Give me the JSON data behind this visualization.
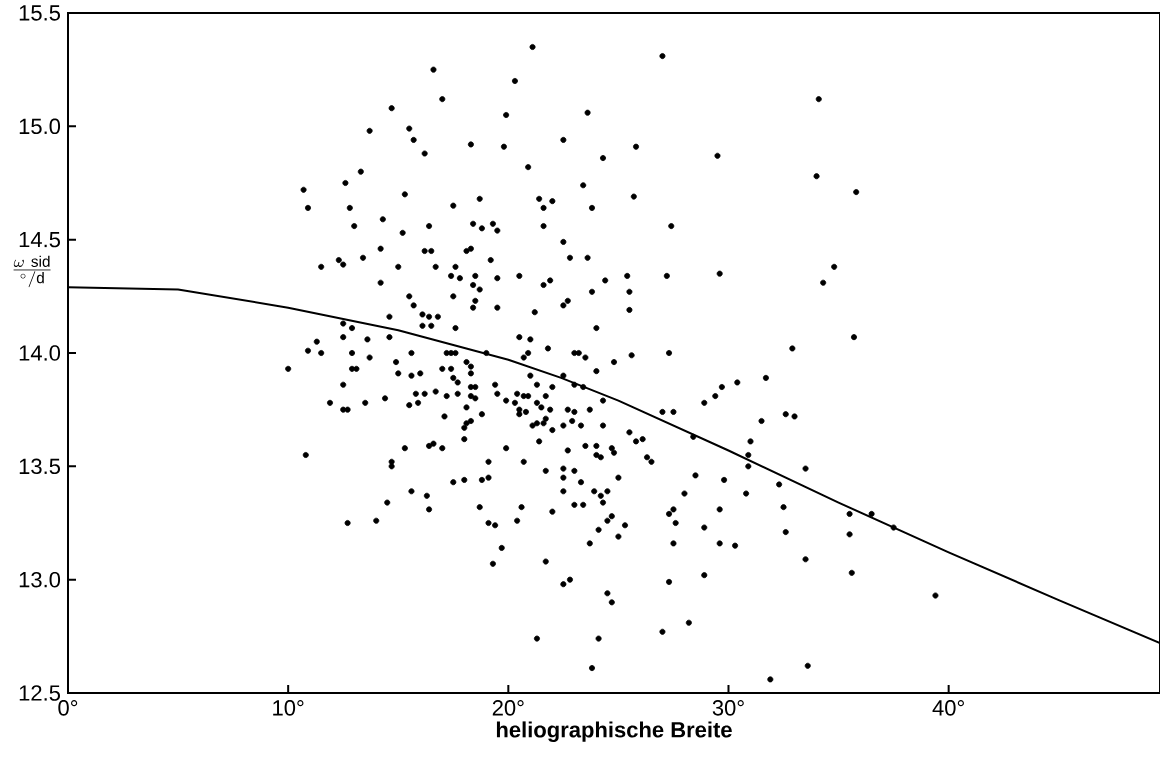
{
  "chart_data": {
    "type": "scatter",
    "xlabel": "heliographische Breite",
    "ylabel": "\\frac{\\omega\\ \\mathrm{sid}}{^{\\circ}/\\mathrm{d}}",
    "xlim": [
      0,
      49.6
    ],
    "ylim": [
      12.5,
      15.5
    ],
    "xticks": [
      {
        "value": 0,
        "label": "0°"
      },
      {
        "value": 10,
        "label": "10°"
      },
      {
        "value": 20,
        "label": "20°"
      },
      {
        "value": 30,
        "label": "30°"
      },
      {
        "value": 40,
        "label": "40°"
      }
    ],
    "yticks": [
      {
        "value": 12.5,
        "label": "12.5"
      },
      {
        "value": 13,
        "label": "13.0"
      },
      {
        "value": 13.5,
        "label": "13.5"
      },
      {
        "value": 14,
        "label": "14.0"
      },
      {
        "value": 14.5,
        "label": "14.5"
      },
      {
        "value": 15,
        "label": "15.0"
      },
      {
        "value": 15.5,
        "label": "15.5"
      }
    ],
    "series": [
      {
        "color": "#000000",
        "marker": "circle",
        "x": [
          21.1,
          16.6,
          20.3,
          17.0,
          14.7,
          19.9,
          13.7,
          15.5,
          15.7,
          18.3,
          19.8,
          22.5,
          16.2,
          20.9,
          13.3,
          12.6,
          10.7,
          10.9,
          12.8,
          15.3,
          17.5,
          18.7,
          21.4,
          22.0,
          21.6,
          13.0,
          14.3,
          16.4,
          18.4,
          18.8,
          19.3,
          19.5,
          21.6,
          22.5,
          15.2,
          14.2,
          16.2,
          16.5,
          18.1,
          18.3,
          19.2,
          22.8,
          12.3,
          12.5,
          11.5,
          13.4,
          15.0,
          16.7,
          17.6,
          17.4,
          17.8,
          18.5,
          19.5,
          20.5,
          14.2,
          18.4,
          18.7,
          21.6,
          21.9,
          17.5,
          15.5,
          18.5,
          15.7,
          18.4,
          19.5,
          22.7,
          22.5,
          21.2,
          14.6,
          16.1,
          16.4,
          16.8,
          16.1,
          16.5,
          17.6,
          12.5,
          12.9,
          12.5,
          11.3,
          13.6,
          14.6,
          20.5,
          21.0,
          10.9,
          11.5,
          12.9,
          13.7,
          15.6,
          17.2,
          17.4,
          17.6,
          19.0,
          21.8,
          20.9,
          20.7,
          14.9,
          18.1,
          18.3,
          10.0,
          12.9,
          13.1,
          15.0,
          15.6,
          16.0,
          17.0,
          17.4,
          17.5,
          18.3,
          21.0,
          22.5,
          27.0,
          34.1,
          23.6,
          25.8,
          24.3,
          29.5,
          34.0,
          35.8,
          23.4,
          25.7,
          23.8,
          27.4,
          23.6,
          25.4,
          27.2,
          29.6,
          24.4,
          34.8,
          34.3,
          23.8,
          25.5,
          25.5,
          24.0,
          32.9,
          35.7,
          23.0,
          23.2,
          23.5,
          24.8,
          25.6,
          27.3,
          24.0,
          31.7,
          12.5,
          11.9,
          12.5,
          12.7,
          13.5,
          14.4,
          15.5,
          15.9,
          15.8,
          16.2,
          16.7,
          17.2,
          17.7,
          17.7,
          17.1,
          18.1,
          18.3,
          18.1,
          18.0,
          18.0,
          18.3,
          18.5,
          18.3,
          18.5,
          18.8,
          19.4,
          19.5,
          19.9,
          20.3,
          20.4,
          20.5,
          20.5,
          20.8,
          20.9,
          20.7,
          21.3,
          21.7,
          21.3,
          21.5,
          21.9,
          21.7,
          21.1,
          21.3,
          21.6,
          22.0,
          22.5,
          22.7,
          22.0,
          10.8,
          15.3,
          16.4,
          16.6,
          17.0,
          19.9,
          21.4,
          22.7,
          14.7,
          14.7,
          19.1,
          20.7,
          21.7,
          22.5,
          22.5,
          22.5,
          17.5,
          18.0,
          18.8,
          19.1,
          14.5,
          15.6,
          16.3,
          16.4,
          18.7,
          20.6,
          22.0,
          12.7,
          14.0,
          19.1,
          19.4,
          20.4,
          19.7,
          19.3,
          21.7,
          22.5,
          22.8,
          21.3,
          23.0,
          23.4,
          24.3,
          23.0,
          23.7,
          22.9,
          23.3,
          24.3,
          23.5,
          24.0,
          24.0,
          24.2,
          24.7,
          24.8,
          25.5,
          25.8,
          26.1,
          26.3,
          26.5,
          23.0,
          23.3,
          25.0,
          23.9,
          24.2,
          24.5,
          24.3,
          23.0,
          23.4,
          24.7,
          24.5,
          25.3,
          24.1,
          25.0,
          23.7,
          24.5,
          24.7,
          24.1,
          23.8,
          27.0,
          27.5,
          28.9,
          29.4,
          29.7,
          30.4,
          28.4,
          31.5,
          32.6,
          33.0,
          31.0,
          30.9,
          30.9,
          28.5,
          29.8,
          28.0,
          30.8,
          32.3,
          33.5,
          32.5,
          29.6,
          27.3,
          27.5,
          27.6,
          28.9,
          32.6,
          27.5,
          29.6,
          30.3,
          35.5,
          36.5,
          37.5,
          35.5,
          33.5,
          35.6,
          28.9,
          27.3,
          39.4,
          28.2,
          27.0,
          33.6,
          31.9
        ],
        "values": [
          15.35,
          15.25,
          15.2,
          15.12,
          15.08,
          15.05,
          14.98,
          14.99,
          14.94,
          14.92,
          14.91,
          14.94,
          14.88,
          14.82,
          14.8,
          14.75,
          14.72,
          14.64,
          14.64,
          14.7,
          14.65,
          14.68,
          14.68,
          14.67,
          14.64,
          14.56,
          14.59,
          14.56,
          14.57,
          14.55,
          14.57,
          14.54,
          14.56,
          14.49,
          14.53,
          14.46,
          14.45,
          14.45,
          14.45,
          14.46,
          14.41,
          14.42,
          14.41,
          14.39,
          14.38,
          14.42,
          14.38,
          14.38,
          14.38,
          14.34,
          14.33,
          14.34,
          14.33,
          14.34,
          14.31,
          14.3,
          14.28,
          14.3,
          14.32,
          14.25,
          14.25,
          14.23,
          14.21,
          14.2,
          14.2,
          14.23,
          14.21,
          14.18,
          14.16,
          14.17,
          14.16,
          14.16,
          14.12,
          14.12,
          14.11,
          14.13,
          14.11,
          14.07,
          14.05,
          14.06,
          14.07,
          14.07,
          14.06,
          14.01,
          14.0,
          14.0,
          13.98,
          14.0,
          14.0,
          14.0,
          14.0,
          14.0,
          14.02,
          14.0,
          13.98,
          13.96,
          13.96,
          13.94,
          13.93,
          13.93,
          13.93,
          13.91,
          13.9,
          13.91,
          13.93,
          13.93,
          13.89,
          13.91,
          13.9,
          13.9,
          15.31,
          15.12,
          15.06,
          14.91,
          14.86,
          14.87,
          14.78,
          14.71,
          14.74,
          14.69,
          14.64,
          14.56,
          14.42,
          14.34,
          14.34,
          14.35,
          14.32,
          14.38,
          14.31,
          14.27,
          14.27,
          14.19,
          14.11,
          14.02,
          14.07,
          14.0,
          14.0,
          13.98,
          13.96,
          13.99,
          14.0,
          13.92,
          13.89,
          13.86,
          13.78,
          13.75,
          13.75,
          13.78,
          13.8,
          13.77,
          13.78,
          13.82,
          13.82,
          13.83,
          13.81,
          13.87,
          13.82,
          13.72,
          13.76,
          13.7,
          13.69,
          13.67,
          13.62,
          13.85,
          13.85,
          13.81,
          13.8,
          13.73,
          13.86,
          13.82,
          13.79,
          13.78,
          13.82,
          13.75,
          13.73,
          13.74,
          13.81,
          13.81,
          13.86,
          13.81,
          13.78,
          13.76,
          13.75,
          13.71,
          13.68,
          13.69,
          13.69,
          13.66,
          13.68,
          13.75,
          13.85,
          13.55,
          13.58,
          13.59,
          13.6,
          13.58,
          13.58,
          13.61,
          13.57,
          13.52,
          13.5,
          13.52,
          13.52,
          13.48,
          13.49,
          13.45,
          13.39,
          13.43,
          13.44,
          13.44,
          13.45,
          13.34,
          13.39,
          13.37,
          13.31,
          13.32,
          13.32,
          13.3,
          13.25,
          13.26,
          13.25,
          13.24,
          13.26,
          13.14,
          13.07,
          13.08,
          12.98,
          13.0,
          12.74,
          13.86,
          13.85,
          13.79,
          13.74,
          13.75,
          13.7,
          13.68,
          13.68,
          13.59,
          13.59,
          13.55,
          13.54,
          13.58,
          13.56,
          13.65,
          13.61,
          13.62,
          13.54,
          13.52,
          13.48,
          13.43,
          13.45,
          13.39,
          13.37,
          13.39,
          13.34,
          13.33,
          13.33,
          13.28,
          13.26,
          13.24,
          13.22,
          13.19,
          13.16,
          12.94,
          12.9,
          12.74,
          12.61,
          13.74,
          13.74,
          13.78,
          13.81,
          13.85,
          13.87,
          13.63,
          13.7,
          13.73,
          13.72,
          13.61,
          13.55,
          13.5,
          13.46,
          13.44,
          13.38,
          13.38,
          13.42,
          13.49,
          13.32,
          13.31,
          13.29,
          13.31,
          13.25,
          13.23,
          13.21,
          13.16,
          13.16,
          13.15,
          13.29,
          13.29,
          13.23,
          13.2,
          13.09,
          13.03,
          13.02,
          12.99,
          12.93,
          12.81,
          12.77,
          12.62,
          12.56
        ]
      },
      {
        "type": "line",
        "color": "#000000",
        "marker": "none",
        "x": [
          0,
          5,
          10,
          15,
          20,
          22.4,
          25,
          30,
          35,
          40,
          45,
          49.6
        ],
        "values": [
          14.29,
          14.28,
          14.2,
          14.1,
          13.97,
          13.89,
          13.79,
          13.57,
          13.34,
          13.12,
          12.91,
          12.72
        ]
      }
    ]
  }
}
